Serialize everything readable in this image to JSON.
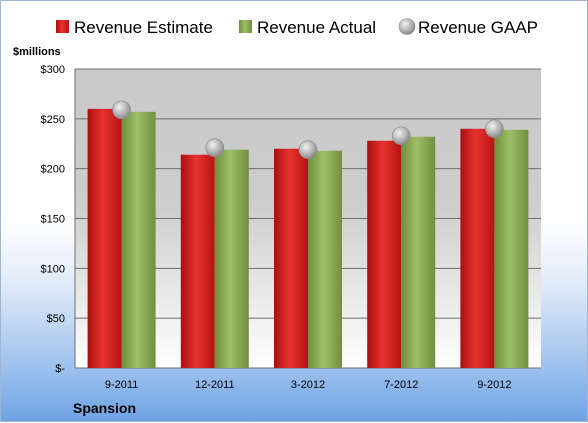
{
  "chart_data": {
    "type": "bar",
    "title": "",
    "unit_label": "$millions",
    "company": "Spansion",
    "categories": [
      "9-2011",
      "12-2011",
      "3-2012",
      "7-2012",
      "9-2012"
    ],
    "series": [
      {
        "name": "Revenue Estimate",
        "kind": "bar",
        "color": "#d8201f",
        "values": [
          260,
          214,
          220,
          228,
          240
        ]
      },
      {
        "name": "Revenue Actual",
        "kind": "bar",
        "color": "#8fb258",
        "values": [
          257,
          219,
          218,
          232,
          239
        ]
      },
      {
        "name": "Revenue GAAP",
        "kind": "marker",
        "color": "#b8b8b8",
        "values": [
          259,
          221,
          219,
          233,
          240
        ]
      }
    ],
    "ylim": [
      0,
      300
    ],
    "yticks": [
      0,
      50,
      100,
      150,
      200,
      250,
      300
    ],
    "ytick_labels": [
      "$-",
      "$50",
      "$100",
      "$150",
      "$200",
      "$250",
      "$300"
    ],
    "grid": true,
    "legend_position": "top"
  }
}
